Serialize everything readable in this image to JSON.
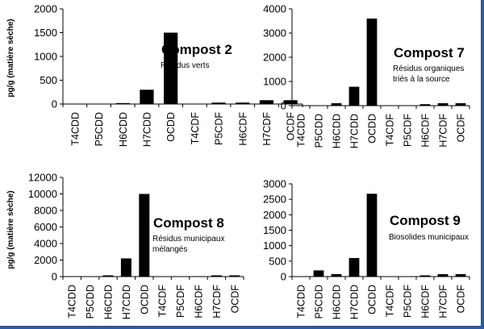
{
  "y_axis_label": "pg/g (matière sèche)",
  "chart_data": [
    {
      "type": "bar",
      "title": "Compost 2",
      "subtitle": [
        "Résidus verts"
      ],
      "xlabel": "",
      "ylabel": "pg/g (matière sèche)",
      "categories": [
        "T4CDD",
        "P5CDD",
        "H6CDD",
        "H7CDD",
        "OCDD",
        "T4CDF",
        "P5CDF",
        "H6CDF",
        "H7CDF",
        "OCDF"
      ],
      "values": [
        0,
        0,
        20,
        300,
        1500,
        0,
        30,
        30,
        80,
        80
      ],
      "ylim": [
        0,
        2000
      ],
      "yticks": [
        "0",
        "500",
        "1000",
        "1500",
        "2000"
      ],
      "grid": false
    },
    {
      "type": "bar",
      "title": "Compost 7",
      "subtitle": [
        "Résidus organiques",
        "triés à la source"
      ],
      "xlabel": "",
      "ylabel": "",
      "categories": [
        "T4CDD",
        "P5CDD",
        "H6CDD",
        "H7CDD",
        "OCDD",
        "T4CDF",
        "P5CDF",
        "H6CDF",
        "H7CDF",
        "OCDF"
      ],
      "values": [
        0,
        0,
        100,
        780,
        3600,
        0,
        0,
        60,
        100,
        100
      ],
      "ylim": [
        0,
        4000
      ],
      "yticks": [
        "0",
        "1000",
        "2000",
        "3000",
        "4000"
      ],
      "grid": false
    },
    {
      "type": "bar",
      "title": "Compost 8",
      "subtitle": [
        "Résidus municipaux",
        "mélangés"
      ],
      "xlabel": "",
      "ylabel": "pg/g (matière sèche)",
      "categories": [
        "T4CDD",
        "P5CDD",
        "H6CDD",
        "H7CDD",
        "OCDD",
        "T4CDF",
        "P5CDF",
        "H6CDF",
        "H7CDF",
        "OCDF"
      ],
      "values": [
        0,
        0,
        150,
        2200,
        10000,
        0,
        0,
        50,
        150,
        150
      ],
      "ylim": [
        0,
        12000
      ],
      "yticks": [
        "0",
        "2000",
        "4000",
        "6000",
        "8000",
        "10000",
        "12000"
      ],
      "grid": false
    },
    {
      "type": "bar",
      "title": "Compost 9",
      "subtitle": [
        "Biosolides municipaux"
      ],
      "xlabel": "",
      "ylabel": "",
      "categories": [
        "T4CDD",
        "P5CDD",
        "H6CDD",
        "H7CDD",
        "OCDD",
        "T4CDF",
        "P5CDF",
        "H6CDF",
        "H7CDF",
        "OCDF"
      ],
      "values": [
        0,
        200,
        80,
        600,
        2680,
        0,
        0,
        40,
        80,
        80
      ],
      "ylim": [
        0,
        3000
      ],
      "yticks": [
        "0",
        "500",
        "1000",
        "1500",
        "2000",
        "2500",
        "3000"
      ],
      "grid": false
    }
  ]
}
